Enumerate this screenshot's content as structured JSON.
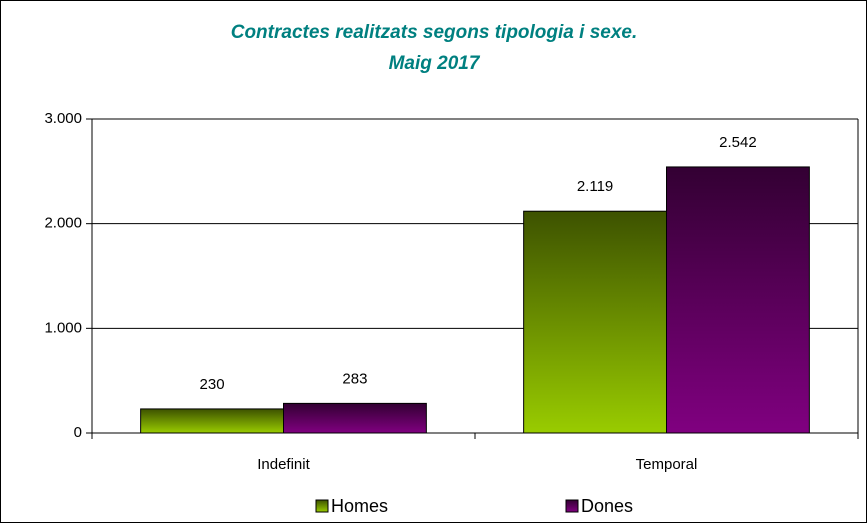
{
  "chart_data": {
    "type": "bar",
    "title": "Contractes realitzats segons tipologia i sexe.",
    "subtitle": "Maig 2017",
    "categories": [
      "Indefinit",
      "Temporal"
    ],
    "series": [
      {
        "name": "Homes",
        "color": "#99cc00",
        "values": [
          230,
          2119
        ],
        "value_labels": [
          "230",
          "2.119"
        ]
      },
      {
        "name": "Dones",
        "color": "#800080",
        "values": [
          283,
          2542
        ],
        "value_labels": [
          "283",
          "2.542"
        ]
      }
    ],
    "ylim": [
      0,
      3000
    ],
    "yticks": [
      0,
      {
        "value": 1000,
        "label": "1.000"
      },
      {
        "value": 2000,
        "label": "2.000"
      },
      {
        "value": 3000,
        "label": "3.000"
      }
    ],
    "grid": true,
    "legend": "bottom"
  }
}
